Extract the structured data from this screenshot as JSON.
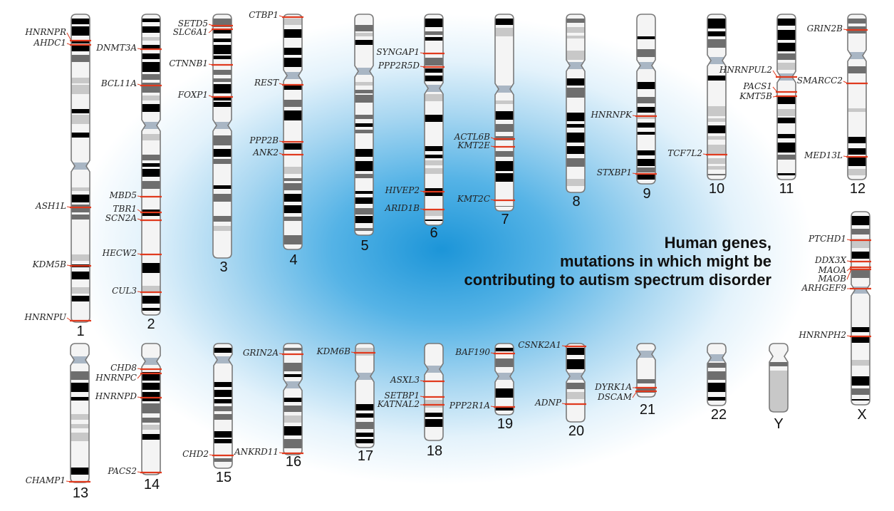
{
  "title_lines": [
    "Human genes,",
    "mutations in which might be",
    "contributing to autism spectrum disorder"
  ],
  "colors": {
    "marker": "#e03a1e",
    "band_dark": "#000000",
    "band_mid": "#6e6e6e",
    "band_light": "#c8c8c8",
    "outline": "#7a7a7a",
    "glow": "#1c95d8"
  },
  "chromosomes": [
    {
      "id": "1",
      "genes": [
        "HNRNPR",
        "AHDC1",
        "ASH1L",
        "KDM5B",
        "HNRNPU"
      ]
    },
    {
      "id": "2",
      "genes": [
        "DNMT3A",
        "BCL11A",
        "MBD5",
        "TBR1",
        "SCN2A",
        "HECW2",
        "CUL3"
      ]
    },
    {
      "id": "3",
      "genes": [
        "SETD5",
        "SLC6A1",
        "CTNNB1",
        "FOXP1"
      ]
    },
    {
      "id": "4",
      "genes": [
        "CTBP1",
        "REST",
        "PPP2B",
        "ANK2"
      ]
    },
    {
      "id": "5",
      "genes": []
    },
    {
      "id": "6",
      "genes": [
        "SYNGAP1",
        "PPP2R5D",
        "HIVEP2",
        "ARID1B"
      ]
    },
    {
      "id": "7",
      "genes": [
        "ACTL6B",
        "KMT2E",
        "KMT2C"
      ]
    },
    {
      "id": "8",
      "genes": []
    },
    {
      "id": "9",
      "genes": [
        "HNRNPK",
        "STXBP1"
      ]
    },
    {
      "id": "10",
      "genes": [
        "TCF7L2"
      ]
    },
    {
      "id": "11",
      "genes": [
        "HNRNPUL2",
        "PACS1",
        "KMT5B"
      ]
    },
    {
      "id": "12",
      "genes": [
        "GRIN2B",
        "SMARCC2",
        "MED13L"
      ]
    },
    {
      "id": "X",
      "genes": [
        "PTCHD1",
        "DDX3X",
        "MAOA",
        "MAOB",
        "ARHGEF9",
        "HNRNPH2"
      ]
    },
    {
      "id": "13",
      "genes": [
        "CHAMP1"
      ]
    },
    {
      "id": "14",
      "genes": [
        "CHD8",
        "HNRNPC",
        "HNRNPD",
        "PACS2"
      ]
    },
    {
      "id": "15",
      "genes": [
        "CHD2"
      ]
    },
    {
      "id": "16",
      "genes": [
        "GRIN2A",
        "ANKRD11"
      ]
    },
    {
      "id": "17",
      "genes": [
        "KDM6B"
      ]
    },
    {
      "id": "18",
      "genes": [
        "ASXL3",
        "SETBP1",
        "KATNAL2"
      ]
    },
    {
      "id": "19",
      "genes": [
        "BAF190",
        "PPP2R1A"
      ]
    },
    {
      "id": "20",
      "genes": [
        "CSNK2A1",
        "ADNP"
      ]
    },
    {
      "id": "21",
      "genes": [
        "DYRK1A",
        "DSCAM"
      ]
    },
    {
      "id": "22",
      "genes": []
    },
    {
      "id": "Y",
      "genes": []
    }
  ]
}
